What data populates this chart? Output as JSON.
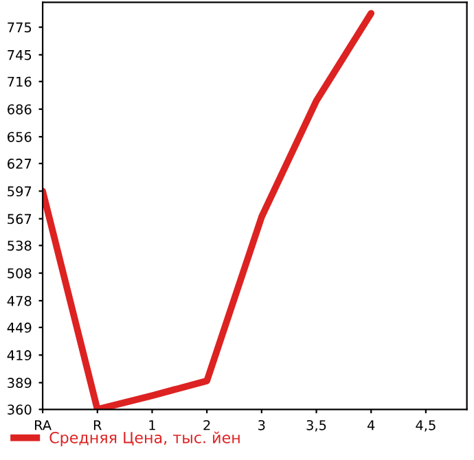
{
  "chart_data": {
    "type": "line",
    "categories": [
      "RA",
      "R",
      "1",
      "2",
      "3",
      "3,5",
      "4",
      "4,5"
    ],
    "series": [
      {
        "name": "Средняя Цена, тыс. йен",
        "color": "#dd2222",
        "values": [
          597,
          360,
          375,
          391,
          569,
          695,
          790,
          null
        ]
      }
    ],
    "ylim": [
      360,
      802
    ],
    "yticks": [
      360,
      389,
      419,
      449,
      478,
      508,
      538,
      567,
      597,
      627,
      656,
      686,
      716,
      745,
      775
    ],
    "grid": false,
    "legend": "bottom",
    "marker": "none",
    "line_style": "solid"
  }
}
